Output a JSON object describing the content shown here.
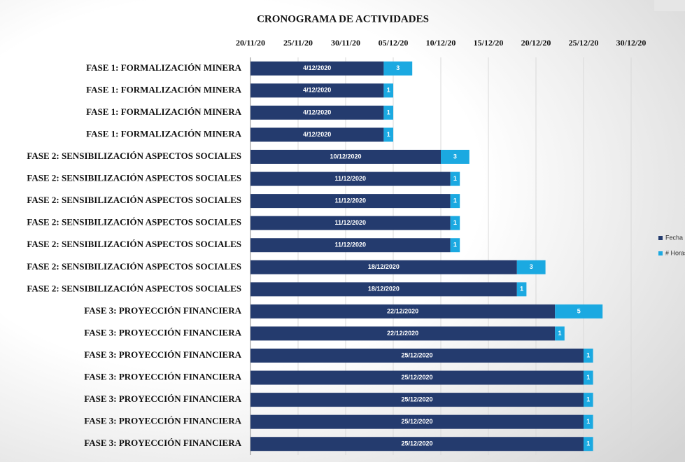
{
  "chart_data": {
    "type": "gantt",
    "title": "CRONOGRAMA DE ACTIVIDADES",
    "categories": [
      "FASE 1: FORMALIZACIÓN  MINERA",
      "FASE 1: FORMALIZACIÓN  MINERA",
      "FASE 1: FORMALIZACIÓN  MINERA",
      "FASE 1: FORMALIZACIÓN  MINERA",
      "FASE 2: SENSIBILIZACIÓN  ASPECTOS  SOCIALES",
      "FASE 2: SENSIBILIZACIÓN  ASPECTOS  SOCIALES",
      "FASE 2: SENSIBILIZACIÓN  ASPECTOS  SOCIALES",
      "FASE 2: SENSIBILIZACIÓN  ASPECTOS  SOCIALES",
      "FASE 2: SENSIBILIZACIÓN  ASPECTOS  SOCIALES",
      "FASE 2: SENSIBILIZACIÓN  ASPECTOS  SOCIALES",
      "FASE 2: SENSIBILIZACIÓN  ASPECTOS  SOCIALES",
      "FASE 3: PROYECCIÓN  FINANCIERA",
      "FASE 3: PROYECCIÓN  FINANCIERA",
      "FASE 3: PROYECCIÓN  FINANCIERA",
      "FASE 3: PROYECCIÓN  FINANCIERA",
      "FASE 3: PROYECCIÓN  FINANCIERA",
      "FASE 3: PROYECCIÓN  FINANCIERA",
      "FASE 3: PROYECCIÓN  FINANCIERA"
    ],
    "series": [
      {
        "name": "Fecha",
        "color": "#243b6e",
        "values": [
          44169,
          44169,
          44169,
          44169,
          44175,
          44176,
          44176,
          44176,
          44176,
          44183,
          44183,
          44187,
          44187,
          44190,
          44190,
          44190,
          44190,
          44190
        ],
        "value_labels": [
          "4/12/2020",
          "4/12/2020",
          "4/12/2020",
          "4/12/2020",
          "10/12/2020",
          "11/12/2020",
          "11/12/2020",
          "11/12/2020",
          "11/12/2020",
          "18/12/2020",
          "18/12/2020",
          "22/12/2020",
          "22/12/2020",
          "25/12/2020",
          "25/12/2020",
          "25/12/2020",
          "25/12/2020",
          "25/12/2020"
        ]
      },
      {
        "name": "# Horas",
        "color": "#1ba9e1",
        "values": [
          3,
          1,
          1,
          1,
          3,
          1,
          1,
          1,
          1,
          3,
          1,
          5,
          1,
          1,
          1,
          1,
          1,
          1
        ]
      }
    ],
    "xlim": [
      44155,
      44195
    ],
    "xticks": [
      {
        "value": 44155,
        "label": "20/11/20"
      },
      {
        "value": 44160,
        "label": "25/11/20"
      },
      {
        "value": 44165,
        "label": "30/11/20"
      },
      {
        "value": 44170,
        "label": "05/12/20"
      },
      {
        "value": 44175,
        "label": "10/12/20"
      },
      {
        "value": 44180,
        "label": "15/12/20"
      },
      {
        "value": 44185,
        "label": "20/12/20"
      },
      {
        "value": 44190,
        "label": "25/12/20"
      },
      {
        "value": 44195,
        "label": "30/12/20"
      }
    ],
    "grid": true,
    "legend": "right"
  }
}
